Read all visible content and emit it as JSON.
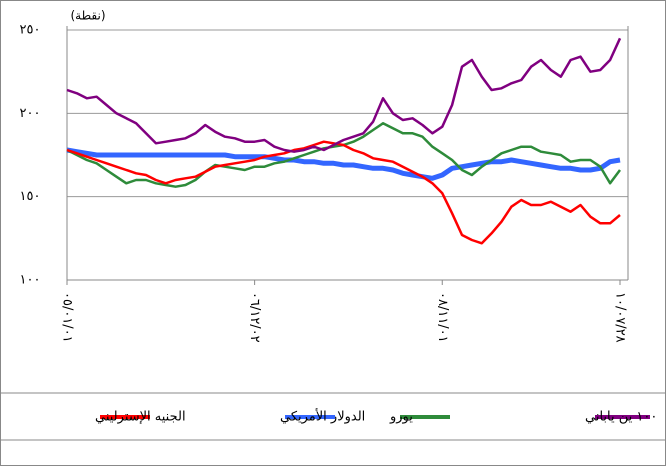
{
  "chart_data": {
    "type": "line",
    "y_unit_label": "(نقطة)",
    "categories": [
      "٠٥/٠١/٠١",
      null,
      null,
      null,
      null,
      null,
      null,
      null,
      null,
      null,
      null,
      null,
      null,
      null,
      null,
      null,
      null,
      null,
      null,
      "٠٦/١٢/٠٢",
      null,
      null,
      null,
      null,
      null,
      null,
      null,
      null,
      null,
      null,
      null,
      null,
      null,
      null,
      null,
      null,
      null,
      null,
      "٠٨/١١/٠١",
      null,
      null,
      null,
      null,
      null,
      null,
      null,
      null,
      null,
      null,
      null,
      null,
      null,
      null,
      null,
      null,
      null,
      "١٠/٠٧/٢٨"
    ],
    "ylim": [
      100,
      250
    ],
    "yticks": [
      {
        "value": 100,
        "label": "١٠٠"
      },
      {
        "value": 150,
        "label": "١٥٠"
      },
      {
        "value": 200,
        "label": "٢٠٠"
      },
      {
        "value": 250,
        "label": "٢٥٠"
      }
    ],
    "grid": true,
    "legend": "bottom",
    "series": [
      {
        "name": "١٠٠ ين ياباني",
        "color": "#800080",
        "values": [
          214,
          212,
          209,
          210,
          205,
          200,
          197,
          194,
          188,
          182,
          183,
          184,
          185,
          188,
          193,
          189,
          186,
          185,
          183,
          183,
          184,
          180,
          178,
          177,
          178,
          180,
          178,
          181,
          184,
          186,
          188,
          195,
          209,
          200,
          196,
          197,
          193,
          188,
          192,
          205,
          228,
          232,
          222,
          214,
          215,
          218,
          220,
          228,
          232,
          226,
          222,
          232,
          234,
          225,
          226,
          232,
          245
        ]
      },
      {
        "name": "يورو",
        "color": "#2e8b3a",
        "values": [
          178,
          175,
          172,
          170,
          166,
          162,
          158,
          160,
          160,
          158,
          157,
          156,
          157,
          160,
          165,
          169,
          168,
          167,
          166,
          168,
          168,
          170,
          171,
          173,
          175,
          177,
          179,
          180,
          181,
          183,
          186,
          190,
          194,
          191,
          188,
          188,
          186,
          180,
          176,
          172,
          166,
          163,
          168,
          172,
          176,
          178,
          180,
          180,
          177,
          176,
          175,
          171,
          172,
          172,
          168,
          158,
          166
        ]
      },
      {
        "name": "الدولار الأمريكي",
        "color": "#3366ff",
        "values": [
          178,
          177,
          176,
          175,
          175,
          175,
          175,
          175,
          175,
          175,
          175,
          175,
          175,
          175,
          175,
          175,
          175,
          174,
          174,
          174,
          174,
          173,
          172,
          172,
          171,
          171,
          170,
          170,
          169,
          169,
          168,
          167,
          167,
          166,
          164,
          163,
          162,
          161,
          163,
          167,
          168,
          169,
          170,
          171,
          171,
          172,
          171,
          170,
          169,
          168,
          167,
          167,
          166,
          166,
          167,
          171,
          172
        ]
      },
      {
        "name": "الجنيه الإسترليني",
        "color": "#ff0000",
        "values": [
          178,
          176,
          174,
          172,
          170,
          168,
          166,
          164,
          163,
          160,
          158,
          160,
          161,
          162,
          165,
          168,
          169,
          170,
          171,
          172,
          174,
          175,
          176,
          178,
          179,
          181,
          183,
          182,
          181,
          178,
          176,
          173,
          172,
          171,
          168,
          165,
          162,
          158,
          152,
          140,
          127,
          124,
          122,
          128,
          135,
          144,
          148,
          145,
          145,
          147,
          144,
          141,
          145,
          138,
          134,
          134,
          139
        ]
      }
    ]
  }
}
